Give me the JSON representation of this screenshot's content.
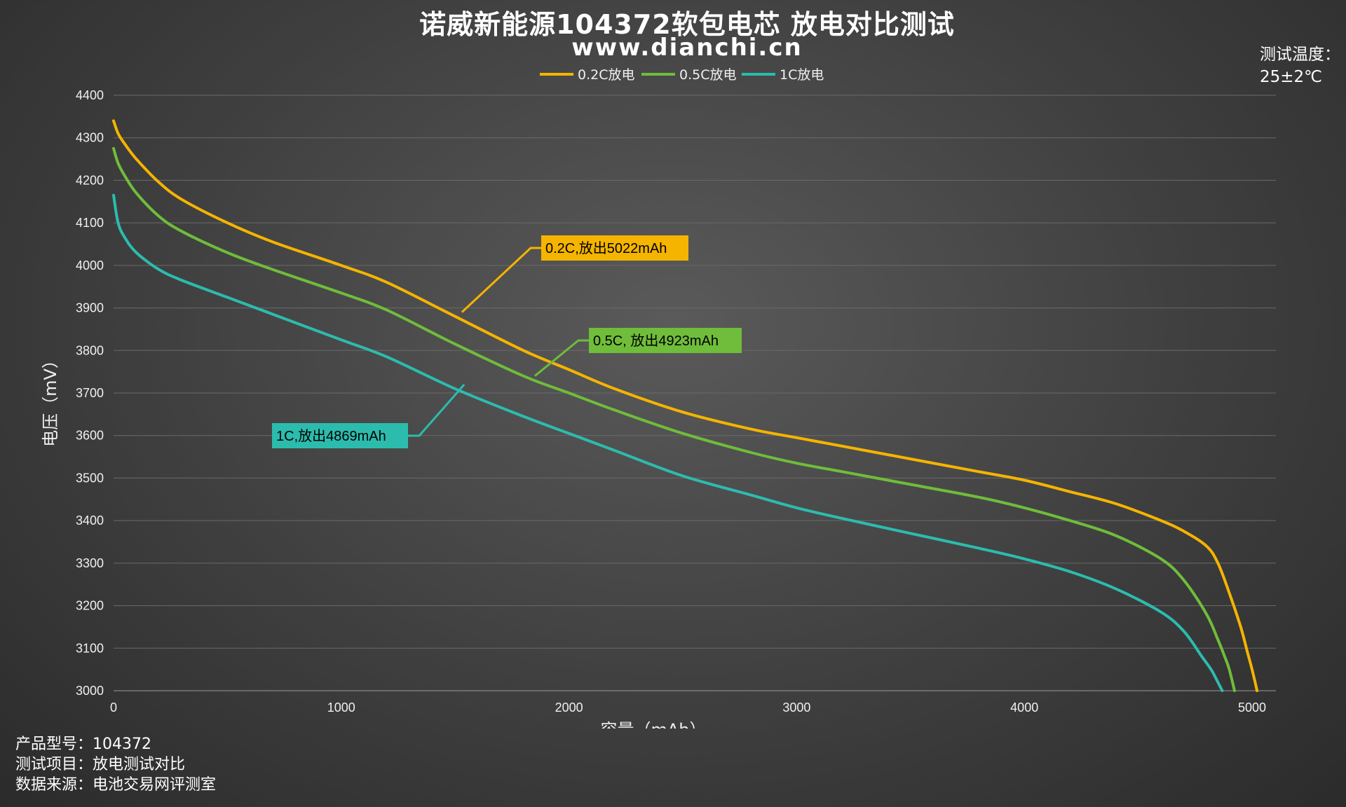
{
  "header": {
    "title": "诺威新能源104372软包电芯 放电对比测试",
    "subtitle": "www.dianchi.cn"
  },
  "temperature": {
    "label": "测试温度：",
    "value": "25±2℃"
  },
  "footer": {
    "model_label": "产品型号：",
    "model_value": "104372",
    "item_label": "测试项目：",
    "item_value": "放电测试对比",
    "source_label": "数据来源：",
    "source_value": "电池交易网评测室"
  },
  "chart_data": {
    "type": "line",
    "xlabel": "容量（mAh）",
    "ylabel": "电压（mV）",
    "xlim": [
      0,
      5100
    ],
    "ylim": [
      3000,
      4400
    ],
    "x_ticks": [
      0,
      1000,
      2000,
      3000,
      4000,
      5000
    ],
    "y_ticks": [
      3000,
      3100,
      3200,
      3300,
      3400,
      3500,
      3600,
      3700,
      3800,
      3900,
      4000,
      4100,
      4200,
      4300,
      4400
    ],
    "grid": true,
    "legend_position": "top-center",
    "series": [
      {
        "name": "0.2C放电",
        "color": "#f5b400",
        "x": [
          0,
          20,
          50,
          100,
          200,
          300,
          500,
          700,
          1000,
          1200,
          1500,
          1800,
          2000,
          2200,
          2500,
          2800,
          3000,
          3200,
          3500,
          3800,
          4000,
          4200,
          4400,
          4600,
          4700,
          4800,
          4850,
          4900,
          4950,
          4980,
          5000,
          5022
        ],
        "y": [
          4340,
          4310,
          4285,
          4250,
          4195,
          4155,
          4100,
          4055,
          4000,
          3960,
          3880,
          3800,
          3755,
          3710,
          3655,
          3615,
          3595,
          3575,
          3545,
          3515,
          3495,
          3468,
          3440,
          3400,
          3375,
          3340,
          3300,
          3230,
          3150,
          3090,
          3050,
          3000
        ]
      },
      {
        "name": "0.5C放电",
        "color": "#6fbd3a",
        "x": [
          0,
          20,
          50,
          100,
          200,
          300,
          500,
          700,
          1000,
          1200,
          1500,
          1800,
          2000,
          2200,
          2500,
          2800,
          3000,
          3200,
          3500,
          3800,
          4000,
          4200,
          4400,
          4600,
          4700,
          4800,
          4850,
          4880,
          4900,
          4923
        ],
        "y": [
          4275,
          4240,
          4210,
          4170,
          4115,
          4080,
          4030,
          3990,
          3935,
          3895,
          3815,
          3740,
          3700,
          3660,
          3605,
          3560,
          3535,
          3515,
          3485,
          3455,
          3430,
          3400,
          3365,
          3310,
          3260,
          3180,
          3120,
          3080,
          3050,
          3000
        ]
      },
      {
        "name": "1C放电",
        "color": "#2cbcae",
        "x": [
          0,
          20,
          50,
          100,
          200,
          300,
          500,
          700,
          1000,
          1200,
          1500,
          1800,
          2000,
          2200,
          2500,
          2800,
          3000,
          3200,
          3500,
          3800,
          4000,
          4200,
          4400,
          4600,
          4700,
          4780,
          4820,
          4845,
          4869
        ],
        "y": [
          4165,
          4100,
          4065,
          4030,
          3990,
          3965,
          3925,
          3885,
          3825,
          3785,
          3710,
          3645,
          3605,
          3565,
          3505,
          3460,
          3430,
          3405,
          3370,
          3335,
          3310,
          3280,
          3240,
          3185,
          3140,
          3080,
          3050,
          3025,
          3000
        ]
      }
    ],
    "annotations": [
      {
        "text": "0.2C,放出5022mAh",
        "color": "#f5b400",
        "point": [
          1530,
          3890
        ]
      },
      {
        "text": "0.5C, 放出4923mAh",
        "color": "#6fbd3a",
        "point": [
          1850,
          3740
        ]
      },
      {
        "text": "1C,放出4869mAh",
        "color": "#2cbcae",
        "point": [
          1540,
          3720
        ]
      }
    ]
  }
}
